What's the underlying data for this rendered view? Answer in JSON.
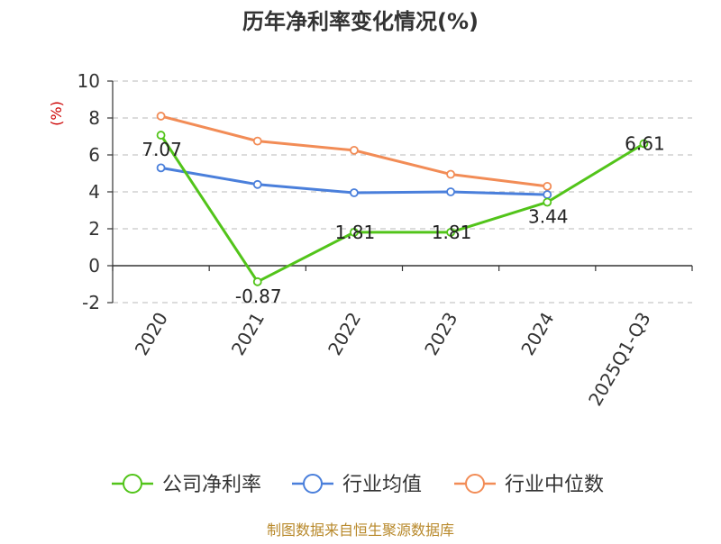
{
  "chart_data": {
    "type": "line",
    "title": "历年净利率变化情况(%)",
    "ylabel": "(%)",
    "categories": [
      "2020",
      "2021",
      "2022",
      "2023",
      "2024",
      "2025Q1-Q3"
    ],
    "ylim": [
      -2,
      10
    ],
    "yticks": [
      -2,
      0,
      2,
      4,
      6,
      8,
      10
    ],
    "grid": "horizontal-dashed",
    "legend_position": "bottom",
    "series": [
      {
        "name": "公司净利率",
        "color": "#52c41a",
        "values": [
          7.07,
          -0.87,
          1.81,
          1.81,
          3.44,
          6.61
        ],
        "labels": [
          "7.07",
          "-0.87",
          "1.81",
          "1.81",
          "3.44",
          "6.61"
        ]
      },
      {
        "name": "行业均值",
        "color": "#4a7fdb",
        "values": [
          5.3,
          4.4,
          3.95,
          4.0,
          3.85,
          null
        ]
      },
      {
        "name": "行业中位数",
        "color": "#f28c56",
        "values": [
          8.1,
          6.75,
          6.25,
          4.95,
          4.3,
          null
        ]
      }
    ]
  },
  "source": "制图数据来自恒生聚源数据库"
}
